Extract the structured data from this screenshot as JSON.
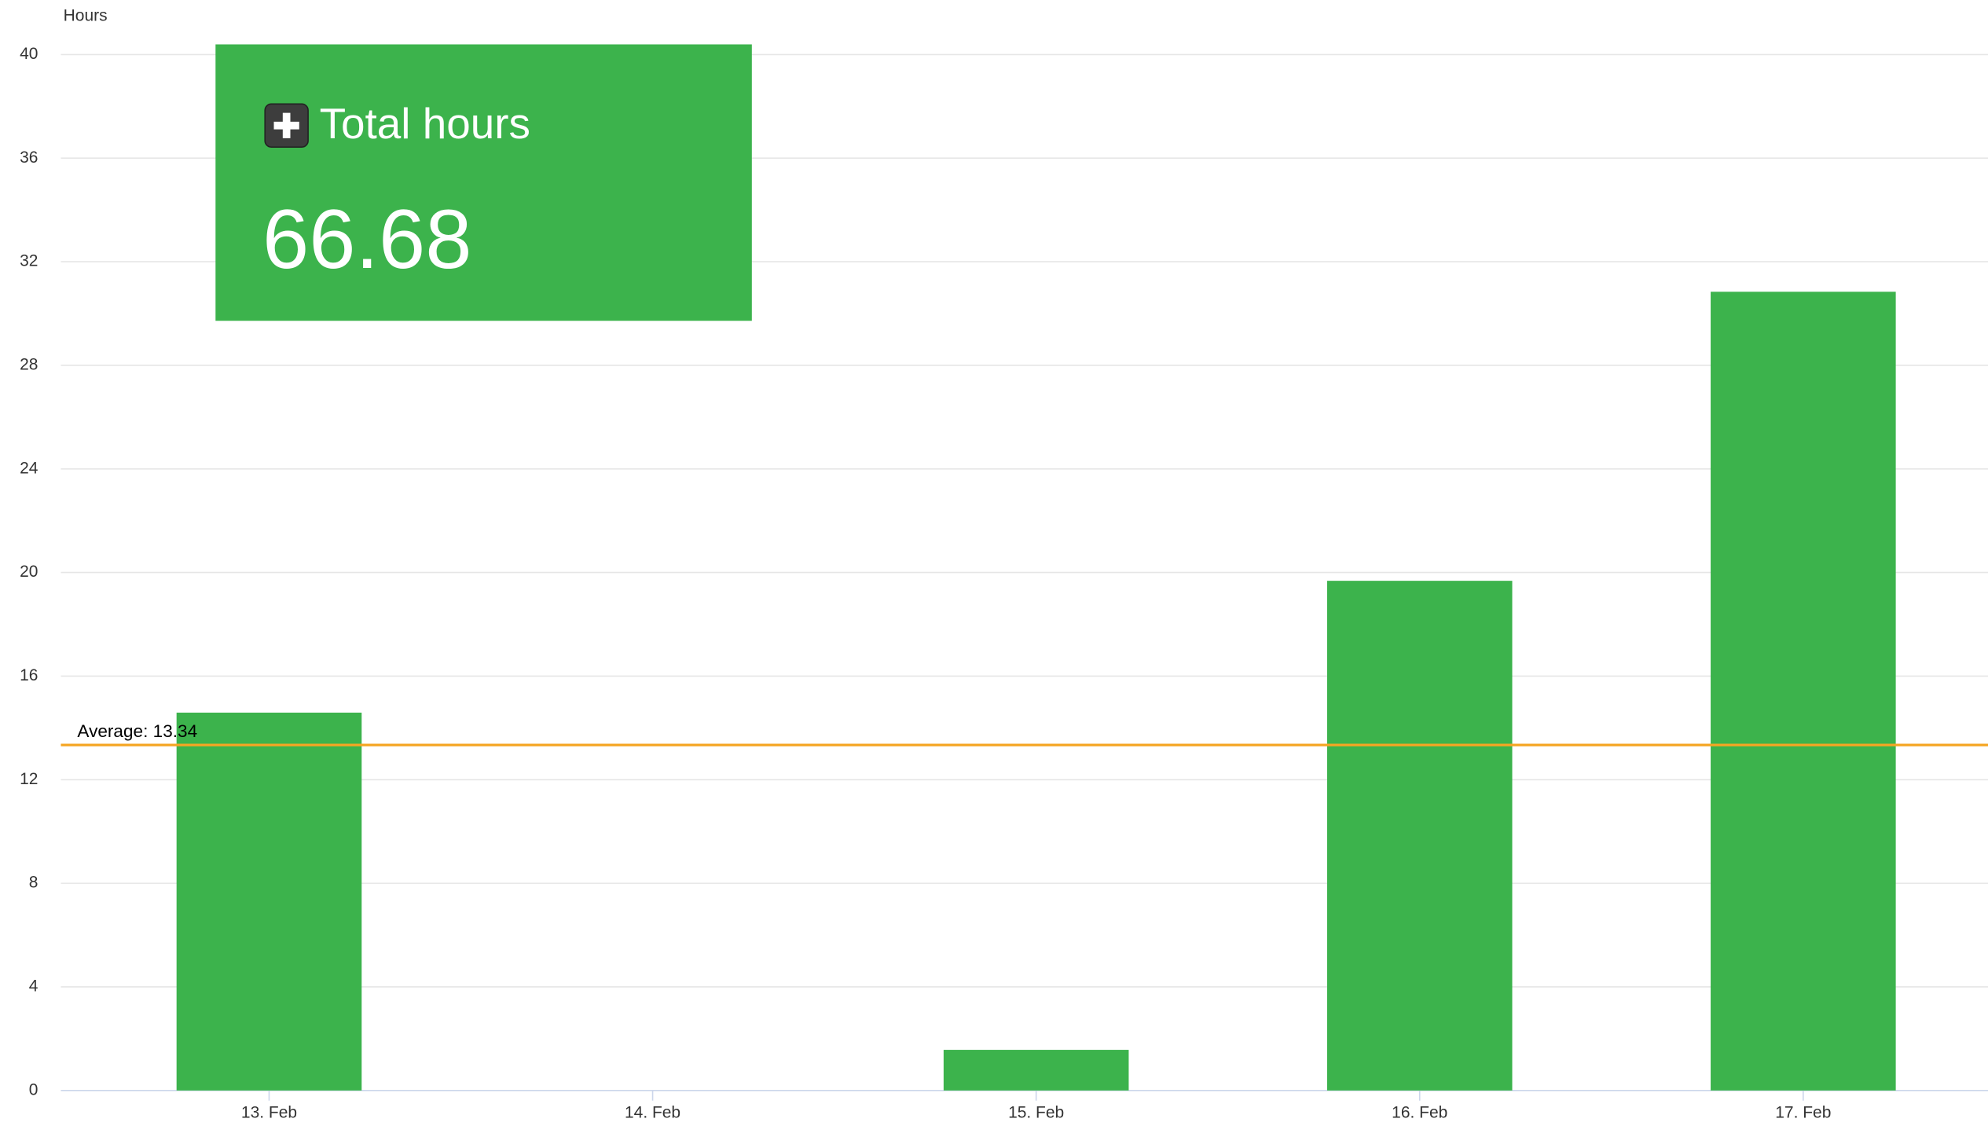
{
  "chart_data": {
    "type": "bar",
    "y_axis_title": "Hours",
    "categories": [
      "13. Feb",
      "14. Feb",
      "15. Feb",
      "16. Feb",
      "17. Feb"
    ],
    "values": [
      14.59,
      0,
      1.57,
      19.68,
      30.84
    ],
    "color": "#3cb34c",
    "ylim": [
      0,
      40
    ],
    "yticks": [
      0,
      4,
      8,
      12,
      16,
      20,
      24,
      28,
      32,
      36,
      40
    ],
    "grid": true,
    "average": {
      "label": "Average: 13.34",
      "value": 13.34,
      "color": "#f5a623"
    },
    "summary": {
      "title": "Total hours",
      "value": 66.68
    }
  }
}
